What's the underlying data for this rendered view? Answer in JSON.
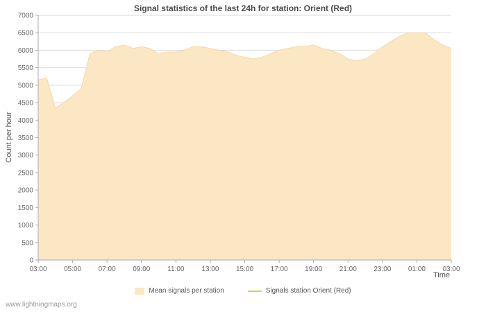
{
  "title": "Signal statistics of the last 24h for station: Orient (Red)",
  "watermark": "www.lightningmaps.org",
  "colors": {
    "area_fill": "#fbe7c3",
    "area_edge": "#f4d9a6",
    "line": "#d9d04a",
    "grid": "#d9d9d9",
    "axis": "#aaaaaa",
    "label_text": "#666666"
  },
  "legend": {
    "mean": {
      "label": "Mean signals per station"
    },
    "station": {
      "label": "Signals station Orient (Red)"
    }
  },
  "chart_data": {
    "type": "area",
    "title": "Signal statistics of the last 24h for station: Orient (Red)",
    "xlabel": "Time",
    "ylabel": "Count per hour",
    "ylim": [
      0,
      7000
    ],
    "ytick_step": 500,
    "xticks": [
      "03:00",
      "05:00",
      "07:00",
      "09:00",
      "11:00",
      "13:00",
      "15:00",
      "17:00",
      "19:00",
      "21:00",
      "23:00",
      "01:00",
      "03:00"
    ],
    "series_name": "Mean signals per station",
    "x_interval_minutes": 30,
    "values": [
      5150,
      5200,
      4350,
      4500,
      4700,
      4900,
      5900,
      6000,
      5950,
      6100,
      6150,
      6050,
      6100,
      6050,
      5900,
      5950,
      5950,
      6000,
      6100,
      6100,
      6050,
      6000,
      5950,
      5850,
      5800,
      5750,
      5800,
      5900,
      6000,
      6050,
      6100,
      6100,
      6150,
      6050,
      6000,
      5900,
      5750,
      5700,
      5750,
      5900,
      6100,
      6250,
      6400,
      6500,
      6500,
      6500,
      6300,
      6150,
      6050
    ]
  }
}
